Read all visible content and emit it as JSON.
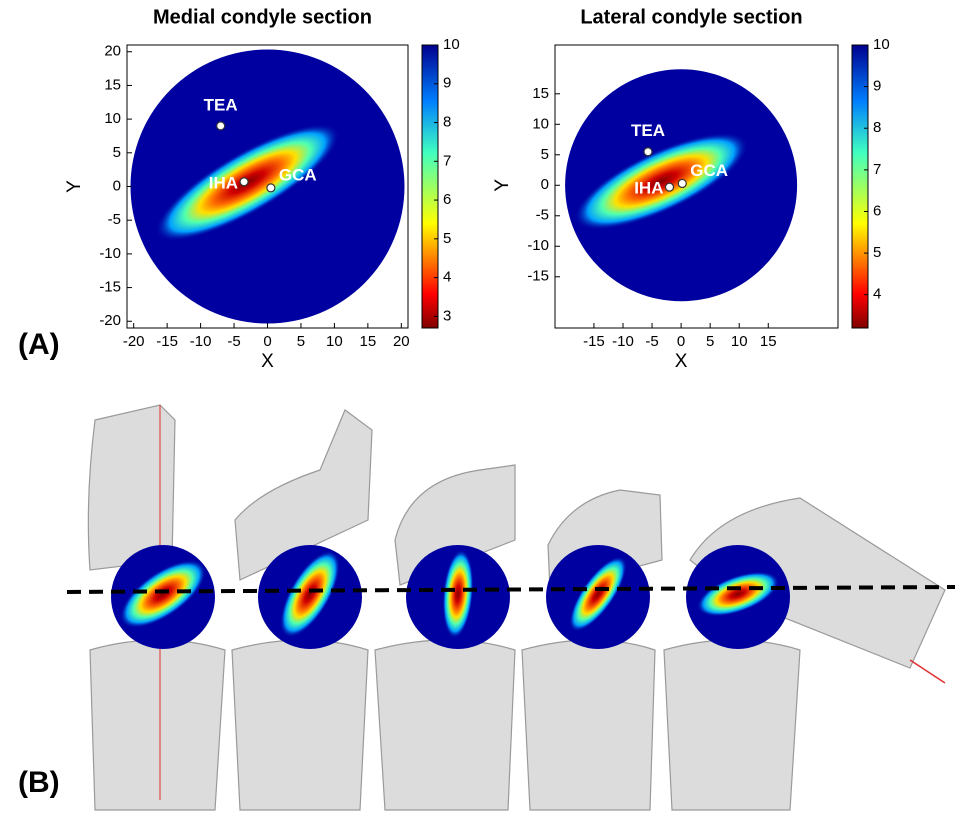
{
  "panel_labels": [
    "(A)",
    "(B)"
  ],
  "chart_data": [
    {
      "type": "heatmap",
      "title": "Medial condyle section",
      "xlabel": "X",
      "ylabel": "Y",
      "xlim": [
        -21,
        21
      ],
      "ylim": [
        -21,
        21
      ],
      "xticks": [
        -20,
        -15,
        -10,
        -5,
        0,
        5,
        10,
        15,
        20
      ],
      "yticks": [
        -20,
        -15,
        -10,
        -5,
        0,
        5,
        10,
        15,
        20
      ],
      "colormap": "jet",
      "clim": [
        2.7,
        10
      ],
      "cticks": [
        3,
        4,
        5,
        6,
        7,
        8,
        9,
        10
      ],
      "points": {
        "labels": [
          "TEA",
          "IHA",
          "GCA"
        ],
        "x": [
          -7,
          -3.5,
          0.5
        ],
        "y": [
          9,
          0.7,
          -0.2
        ]
      }
    },
    {
      "type": "heatmap",
      "title": "Lateral condyle section",
      "xlabel": "X",
      "ylabel": "Y",
      "xlim": [
        -21.7,
        27
      ],
      "ylim": [
        -23.4,
        23
      ],
      "xticks": [
        -15,
        -10,
        -5,
        0,
        5,
        10,
        15
      ],
      "yticks": [
        -15,
        -10,
        -5,
        0,
        5,
        10,
        15
      ],
      "colormap": "jet",
      "clim": [
        3.2,
        10
      ],
      "cticks": [
        4,
        5,
        6,
        7,
        8,
        9,
        10
      ],
      "points": {
        "labels": [
          "TEA",
          "IHA",
          "GCA"
        ],
        "x": [
          -5.7,
          -2,
          0.2
        ],
        "y": [
          5.5,
          -0.3,
          0.3
        ]
      }
    }
  ]
}
